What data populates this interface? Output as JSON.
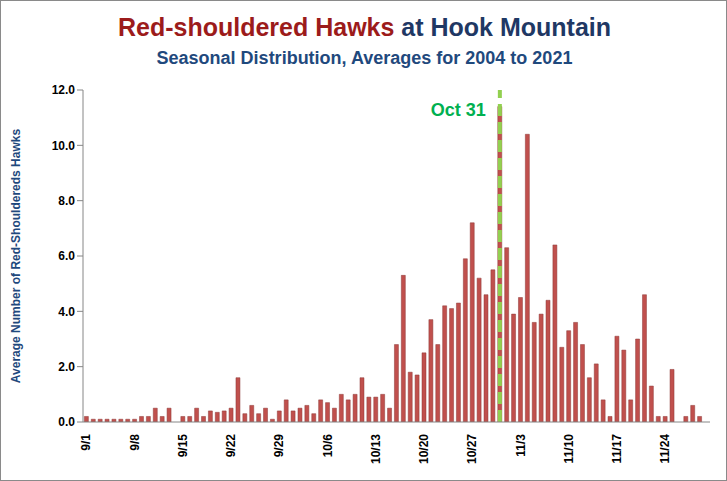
{
  "chart_data": {
    "type": "bar",
    "title": "Red-shouldered Hawks at Hook Mountain",
    "subtitle": "Seasonal Distribution, Averages for 2004 to 2021",
    "y_label": "Average Number of Red-Shouldereds Hawks",
    "categories": [
      "9/1",
      null,
      null,
      null,
      null,
      null,
      null,
      "9/8",
      null,
      null,
      null,
      null,
      null,
      null,
      "9/15",
      null,
      null,
      null,
      null,
      null,
      null,
      "9/22",
      null,
      null,
      null,
      null,
      null,
      null,
      "9/29",
      null,
      null,
      null,
      null,
      null,
      null,
      "10/6",
      null,
      null,
      null,
      null,
      null,
      null,
      "10/13",
      null,
      null,
      null,
      null,
      null,
      null,
      "10/20",
      null,
      null,
      null,
      null,
      null,
      null,
      "10/27",
      null,
      null,
      null,
      null,
      null,
      null,
      "11/3",
      null,
      null,
      null,
      null,
      null,
      null,
      "11/10",
      null,
      null,
      null,
      null,
      null,
      null,
      "11/17",
      null,
      null,
      null,
      null,
      null,
      null,
      "11/24",
      null,
      null,
      null,
      null,
      null,
      null
    ],
    "values": [
      0.2,
      0.1,
      0.1,
      0.1,
      0.1,
      0.1,
      0.1,
      0.1,
      0.2,
      0.2,
      0.5,
      0.2,
      0.5,
      0,
      0.2,
      0.2,
      0.5,
      0.2,
      0.4,
      0.35,
      0.4,
      0.5,
      1.6,
      0.3,
      0.6,
      0.3,
      0.5,
      0.1,
      0.4,
      0.8,
      0.4,
      0.5,
      0.6,
      0.3,
      0.8,
      0.7,
      0.5,
      1.0,
      0.8,
      1.0,
      1.6,
      0.9,
      0.9,
      1.0,
      0.5,
      2.8,
      5.3,
      1.8,
      1.7,
      2.5,
      3.7,
      2.8,
      4.2,
      4.1,
      4.3,
      5.9,
      7.2,
      5.2,
      4.6,
      5.5,
      11.4,
      6.3,
      3.9,
      4.5,
      10.4,
      3.6,
      3.9,
      4.4,
      6.4,
      2.7,
      3.3,
      3.6,
      2.8,
      1.6,
      2.1,
      0.8,
      0.2,
      3.1,
      2.6,
      0.8,
      3.0,
      4.6,
      1.3,
      0.2,
      0.2,
      1.9,
      0,
      0.2,
      0.6,
      0.2,
      0
    ],
    "color": "#c0504d",
    "ylim": [
      0,
      12
    ],
    "yticks": [
      {
        "value": 0,
        "label": "0.0"
      },
      {
        "value": 2,
        "label": "2.0"
      },
      {
        "value": 4,
        "label": "4.0"
      },
      {
        "value": 6,
        "label": "6.0"
      },
      {
        "value": 8,
        "label": "8.0"
      },
      {
        "value": 10,
        "label": "10.0"
      },
      {
        "value": 12,
        "label": "12.0"
      }
    ],
    "grid": false,
    "annotations": [
      {
        "text": "Oct 31",
        "x": 60
      }
    ]
  }
}
